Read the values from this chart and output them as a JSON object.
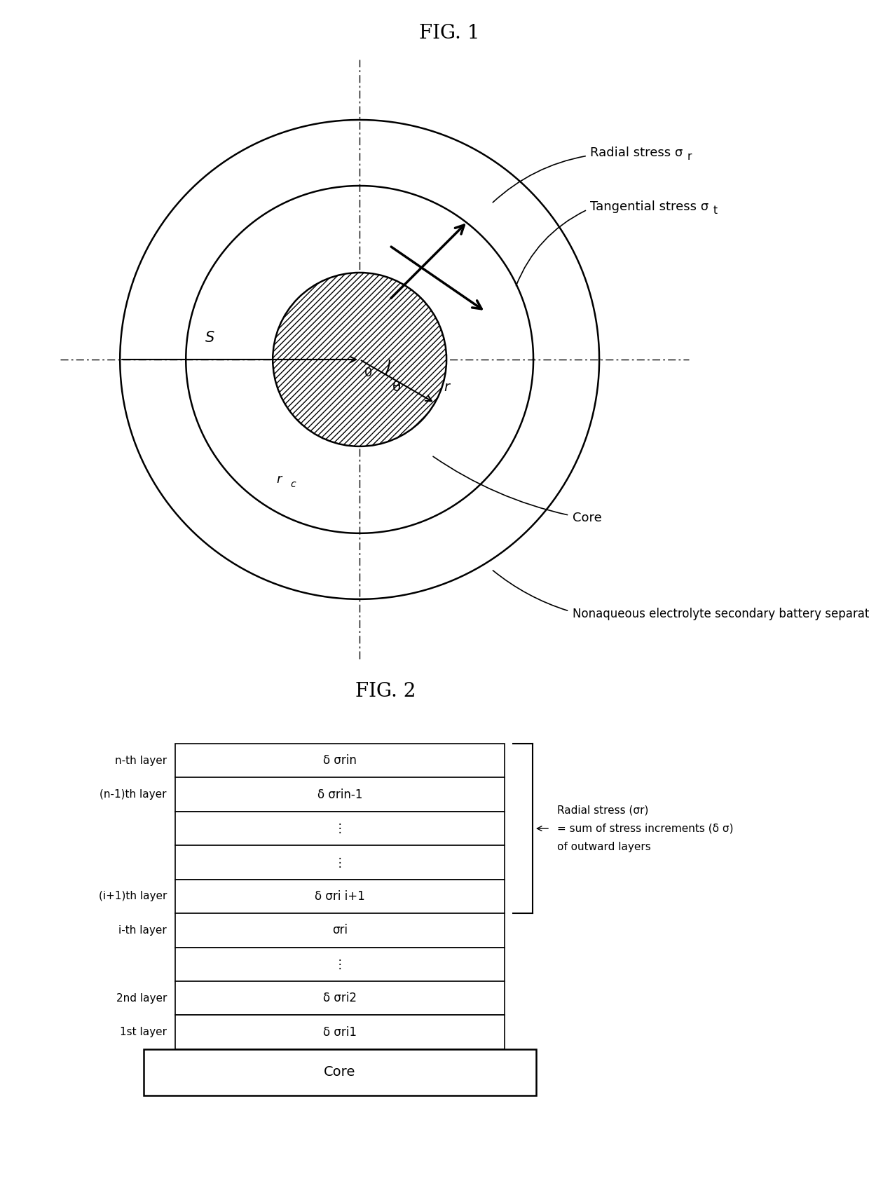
{
  "fig1_title": "FIG. 1",
  "fig2_title": "FIG. 2",
  "bg_color": "#ffffff",
  "fig1_labels": {
    "radial_stress": "Radial stress σ",
    "radial_stress_sub": "r",
    "tangential_stress": "Tangential stress σ",
    "tangential_stress_sub": "t",
    "r_label": "r",
    "s_label": "S",
    "theta_label": "θ",
    "o_label": "0",
    "rc_label": "r",
    "rc_sub": "c",
    "core_label": "Core",
    "separator_label": "Nonaqueous electrolyte secondary battery separator"
  },
  "fig2_layers": [
    {
      "label": "n-th layer",
      "text": "δ σrin",
      "bracket": true
    },
    {
      "label": "(n-1)th layer",
      "text": "δ σrin-1",
      "bracket": true
    },
    {
      "label": "",
      "text": "⋮",
      "bracket": true
    },
    {
      "label": "",
      "text": "⋮",
      "bracket": true
    },
    {
      "label": "(i+1)th layer",
      "text": "δ σri i+1",
      "bracket": true
    },
    {
      "label": "i-th layer",
      "text": "σri",
      "bracket": false
    },
    {
      "label": "",
      "text": "⋮",
      "bracket": false
    },
    {
      "label": "2nd layer",
      "text": "δ σri2",
      "bracket": false
    },
    {
      "label": "1st layer",
      "text": "δ σri1",
      "bracket": false
    }
  ],
  "fig2_core_label": "Core",
  "fig2_annotation_line1": "Radial stress (σr)",
  "fig2_annotation_line2": "= sum of stress increments (δ σ)",
  "fig2_annotation_line3": "of outward layers"
}
